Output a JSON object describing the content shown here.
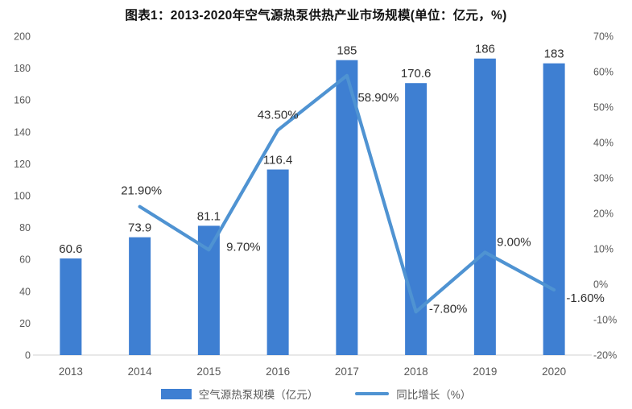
{
  "title": "图表1：2013-2020年空气源热泵供热产业市场规模(单位：亿元，%)",
  "colors": {
    "bar": "#3e7fd2",
    "line": "#4f93d2",
    "axis_text": "#595959",
    "label_text": "#303030",
    "baseline": "#d9d9d9"
  },
  "chart_data": {
    "type": "bar+line combo",
    "title": "图表1：2013-2020年空气源热泵供热产业市场规模(单位：亿元，%)",
    "categories": [
      "2013",
      "2014",
      "2015",
      "2016",
      "2017",
      "2018",
      "2019",
      "2020"
    ],
    "series": [
      {
        "name": "空气源热泵规模（亿元）",
        "type": "bar",
        "axis": "left",
        "values": [
          60.6,
          73.9,
          81.1,
          116.4,
          185,
          170.6,
          186,
          183
        ],
        "labels": [
          "60.6",
          "73.9",
          "81.1",
          "116.4",
          "185",
          "170.6",
          "186",
          "183"
        ]
      },
      {
        "name": "同比增长（%）",
        "type": "line",
        "axis": "right",
        "values": [
          null,
          21.9,
          9.7,
          43.5,
          58.9,
          -7.8,
          9.0,
          -1.6
        ],
        "labels": [
          null,
          "21.90%",
          "9.70%",
          "43.50%",
          "58.90%",
          "-7.80%",
          "9.00%",
          "-1.60%"
        ]
      }
    ],
    "left_axis": {
      "min": 0,
      "max": 200,
      "step": 20,
      "ticks": [
        "0",
        "20",
        "40",
        "60",
        "80",
        "100",
        "120",
        "140",
        "160",
        "180",
        "200"
      ]
    },
    "right_axis": {
      "min": -20,
      "max": 70,
      "step": 10,
      "ticks": [
        "-20%",
        "-10%",
        "0%",
        "10%",
        "20%",
        "30%",
        "40%",
        "50%",
        "60%",
        "70%"
      ]
    },
    "grid": false,
    "legend_position": "bottom"
  }
}
